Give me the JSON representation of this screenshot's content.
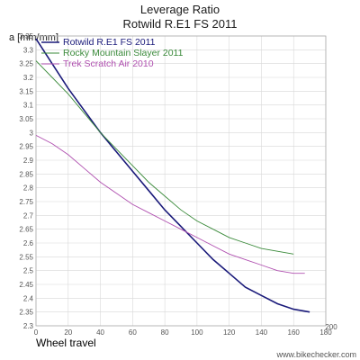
{
  "chart_data": {
    "type": "line",
    "title": "Leverage Ratio",
    "subtitle": "Rotwild R.E1 FS 2011",
    "ylabel": "a [mm/mm]",
    "xlabel": "Wheel travel",
    "xlim": [
      0,
      180
    ],
    "ylim": [
      2.3,
      3.35
    ],
    "xticks": [
      0,
      20,
      40,
      60,
      80,
      100,
      120,
      140,
      160,
      180
    ],
    "extra_xtick_label": "200",
    "yticks": [
      2.3,
      2.35,
      2.4,
      2.45,
      2.5,
      2.55,
      2.6,
      2.65,
      2.7,
      2.75,
      2.8,
      2.85,
      2.9,
      2.95,
      3,
      3.05,
      3.1,
      3.15,
      3.2,
      3.25,
      3.3,
      3.35
    ],
    "grid": true,
    "legend_position": "top-left",
    "series": [
      {
        "name": "Rotwild R.E1 FS 2011",
        "color": "#1a1a7a",
        "points": [
          [
            0,
            3.34
          ],
          [
            10,
            3.25
          ],
          [
            20,
            3.16
          ],
          [
            30,
            3.08
          ],
          [
            40,
            3.0
          ],
          [
            50,
            2.93
          ],
          [
            60,
            2.86
          ],
          [
            70,
            2.79
          ],
          [
            80,
            2.72
          ],
          [
            90,
            2.66
          ],
          [
            100,
            2.6
          ],
          [
            110,
            2.54
          ],
          [
            120,
            2.49
          ],
          [
            130,
            2.44
          ],
          [
            140,
            2.41
          ],
          [
            150,
            2.38
          ],
          [
            160,
            2.36
          ],
          [
            170,
            2.35
          ]
        ]
      },
      {
        "name": "Rocky Mountain Slayer 2011",
        "color": "#3a8a3a",
        "points": [
          [
            0,
            3.26
          ],
          [
            10,
            3.2
          ],
          [
            20,
            3.14
          ],
          [
            30,
            3.07
          ],
          [
            40,
            3.0
          ],
          [
            50,
            2.94
          ],
          [
            60,
            2.88
          ],
          [
            70,
            2.82
          ],
          [
            80,
            2.77
          ],
          [
            90,
            2.72
          ],
          [
            100,
            2.68
          ],
          [
            110,
            2.65
          ],
          [
            120,
            2.62
          ],
          [
            130,
            2.6
          ],
          [
            140,
            2.58
          ],
          [
            150,
            2.57
          ],
          [
            160,
            2.56
          ]
        ]
      },
      {
        "name": "Trek Scratch Air 2010",
        "color": "#b050b0",
        "points": [
          [
            0,
            2.99
          ],
          [
            10,
            2.96
          ],
          [
            20,
            2.92
          ],
          [
            30,
            2.87
          ],
          [
            40,
            2.82
          ],
          [
            50,
            2.78
          ],
          [
            60,
            2.74
          ],
          [
            70,
            2.71
          ],
          [
            80,
            2.68
          ],
          [
            90,
            2.65
          ],
          [
            100,
            2.62
          ],
          [
            110,
            2.59
          ],
          [
            120,
            2.56
          ],
          [
            130,
            2.54
          ],
          [
            140,
            2.52
          ],
          [
            150,
            2.5
          ],
          [
            160,
            2.49
          ],
          [
            167,
            2.49
          ]
        ]
      }
    ]
  },
  "watermark": "www.bikechecker.com"
}
